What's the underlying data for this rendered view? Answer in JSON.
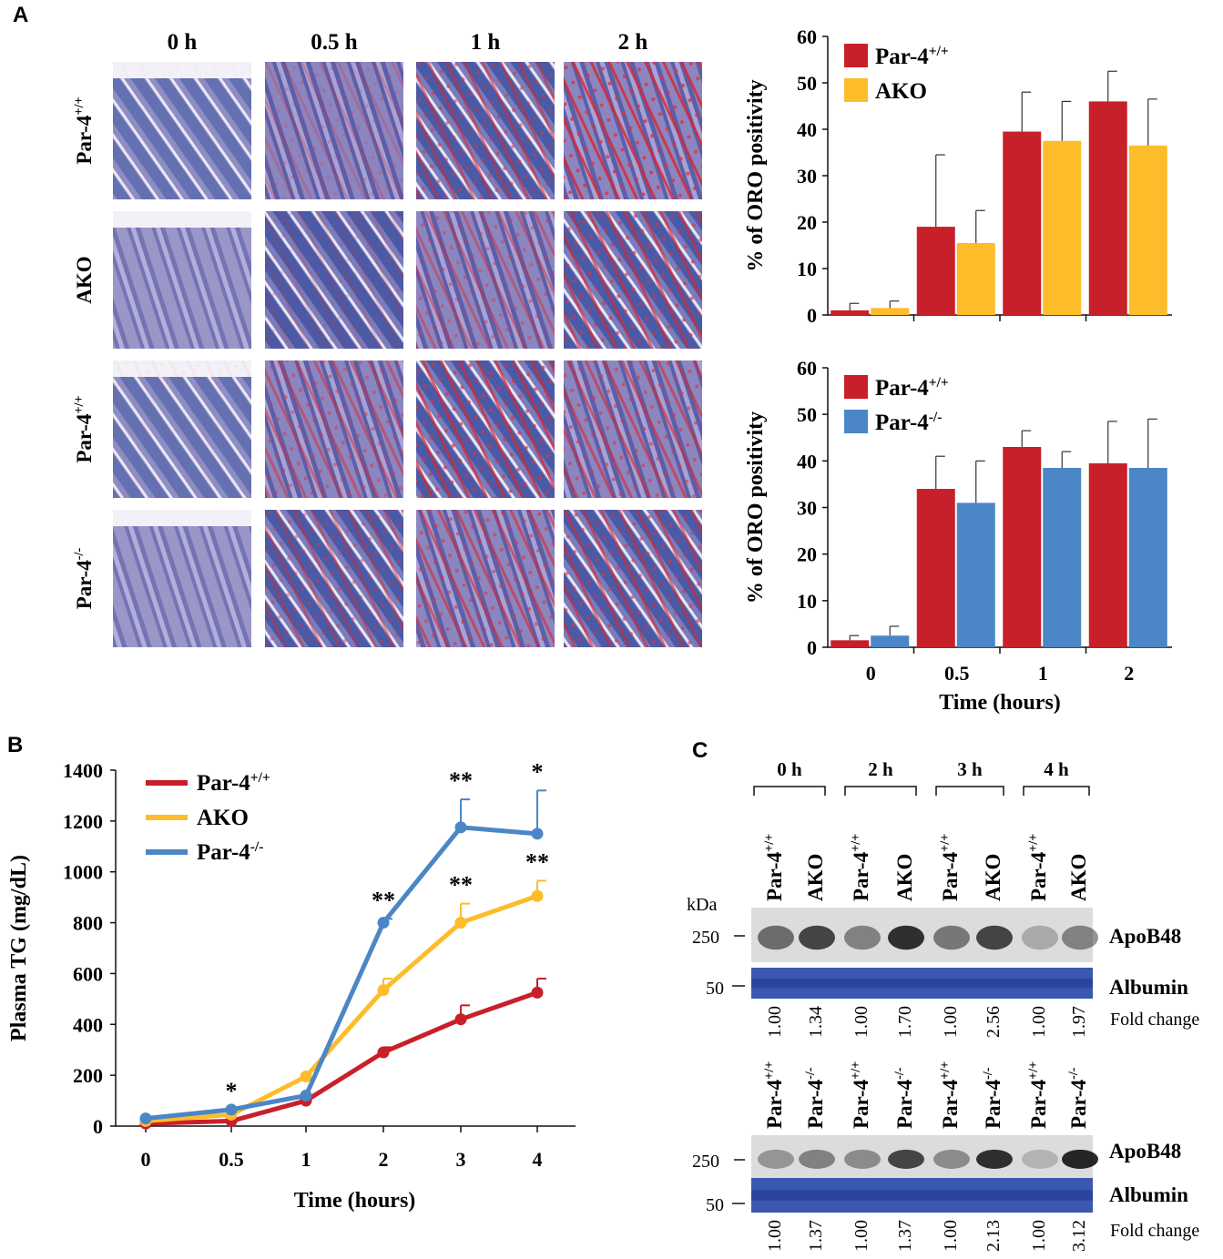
{
  "panels": {
    "a": "A",
    "b": "B",
    "c": "C"
  },
  "micrographs": {
    "columns": [
      "0 h",
      "0.5 h",
      "1 h",
      "2 h"
    ],
    "row_labels": [
      {
        "base": "Par-4",
        "sup": "+/+"
      },
      {
        "base": "AKO",
        "sup": ""
      },
      {
        "base": "Par-4",
        "sup": "+/+"
      },
      {
        "base": "Par-4",
        "sup": "-/-"
      }
    ],
    "stain_levels": [
      [
        0.02,
        0.25,
        0.55,
        0.8
      ],
      [
        0.0,
        0.2,
        0.45,
        0.65
      ],
      [
        0.05,
        0.5,
        0.7,
        0.6
      ],
      [
        0.0,
        0.45,
        0.6,
        0.6
      ]
    ]
  },
  "chart_data": [
    {
      "type": "bar",
      "title": "",
      "categories": [
        "0",
        "0.5",
        "1",
        "2"
      ],
      "series": [
        {
          "name": "Par-4",
          "sup": "+/+",
          "color": "#c8202a",
          "values": [
            1,
            19,
            39.5,
            46
          ],
          "errors": [
            1.5,
            15.5,
            8.5,
            6.5
          ]
        },
        {
          "name": "AKO",
          "sup": "",
          "color": "#fdbc2a",
          "values": [
            1.5,
            15.5,
            37.5,
            36.5
          ],
          "errors": [
            1.5,
            7,
            8.5,
            10
          ]
        }
      ],
      "ylabel": "% of ORO positivity",
      "xlabel": "",
      "ylim": [
        0,
        60
      ],
      "yticks": [
        "0",
        "10",
        "20",
        "30",
        "40",
        "50",
        "60"
      ],
      "legend": "top-left"
    },
    {
      "type": "bar",
      "title": "",
      "categories": [
        "0",
        "0.5",
        "1",
        "2"
      ],
      "series": [
        {
          "name": "Par-4",
          "sup": "+/+",
          "color": "#c8202a",
          "values": [
            1.5,
            34,
            43,
            39.5
          ],
          "errors": [
            1,
            7,
            3.5,
            9
          ]
        },
        {
          "name": "Par-4",
          "sup": "-/-",
          "color": "#4b86c6",
          "values": [
            2.5,
            31,
            38.5,
            38.5
          ],
          "errors": [
            2,
            9,
            3.5,
            10.5
          ]
        }
      ],
      "ylabel": "% of ORO positivity",
      "xlabel": "Time (hours)",
      "ylim": [
        0,
        60
      ],
      "yticks": [
        "0",
        "10",
        "20",
        "30",
        "40",
        "50",
        "60"
      ],
      "legend": "top-left"
    },
    {
      "type": "line",
      "title": "",
      "x": [
        "0",
        "0.5",
        "1",
        "2",
        "3",
        "4"
      ],
      "series": [
        {
          "name": "Par-4",
          "sup": "+/+",
          "color": "#c8202a",
          "values": [
            10,
            20,
            100,
            290,
            420,
            525
          ],
          "errors": [
            0,
            0,
            0,
            20,
            55,
            55
          ]
        },
        {
          "name": "AKO",
          "sup": "",
          "color": "#fdbc2a",
          "values": [
            20,
            45,
            195,
            535,
            800,
            905
          ],
          "errors": [
            0,
            0,
            0,
            45,
            75,
            60
          ]
        },
        {
          "name": "Par-4",
          "sup": "-/-",
          "color": "#4b86c6",
          "values": [
            30,
            65,
            120,
            800,
            1175,
            1150
          ],
          "errors": [
            0,
            0,
            0,
            15,
            110,
            170
          ]
        }
      ],
      "significance": [
        {
          "x": "0.5",
          "series": 2,
          "text": "*"
        },
        {
          "x": "2",
          "series": 2,
          "text": "**"
        },
        {
          "x": "3",
          "series": 2,
          "text": "**"
        },
        {
          "x": "3",
          "series": 1,
          "text": "**"
        },
        {
          "x": "4",
          "series": 2,
          "text": "*"
        },
        {
          "x": "4",
          "series": 1,
          "text": "**"
        }
      ],
      "ylabel": "Plasma TG  (mg/dL)",
      "xlabel": "Time (hours)",
      "ylim": [
        0,
        1400
      ],
      "yticks": [
        "0",
        "200",
        "400",
        "600",
        "800",
        "1000",
        "1200",
        "1400"
      ],
      "legend": "top-left"
    }
  ],
  "blots": {
    "kda": "kDa",
    "marker_250": "250",
    "marker_50": "50",
    "apob48": "ApoB48",
    "albumin": "Albumin",
    "fold_change": "Fold change",
    "top": {
      "groups": [
        "0 h",
        "2 h",
        "3 h",
        "4 h"
      ],
      "lanes": [
        {
          "base": "Par-4",
          "sup": "+/+"
        },
        {
          "base": "AKO",
          "sup": ""
        },
        {
          "base": "Par-4",
          "sup": "+/+"
        },
        {
          "base": "AKO",
          "sup": ""
        },
        {
          "base": "Par-4",
          "sup": "+/+"
        },
        {
          "base": "AKO",
          "sup": ""
        },
        {
          "base": "Par-4",
          "sup": "+/+"
        },
        {
          "base": "AKO",
          "sup": ""
        }
      ],
      "fold": [
        "1.00",
        "1.34",
        "1.00",
        "1.70",
        "1.00",
        "2.56",
        "1.00",
        "1.97"
      ],
      "band_intensity": [
        0.55,
        0.75,
        0.45,
        0.85,
        0.5,
        0.75,
        0.25,
        0.45
      ]
    },
    "bottom": {
      "lanes": [
        {
          "base": "Par-4",
          "sup": "+/+"
        },
        {
          "base": "Par-4",
          "sup": "-/-"
        },
        {
          "base": "Par-4",
          "sup": "+/+"
        },
        {
          "base": "Par-4",
          "sup": "-/-"
        },
        {
          "base": "Par-4",
          "sup": "+/+"
        },
        {
          "base": "Par-4",
          "sup": "-/-"
        },
        {
          "base": "Par-4",
          "sup": "+/+"
        },
        {
          "base": "Par-4",
          "sup": "-/-"
        }
      ],
      "fold": [
        "1.00",
        "1.37",
        "1.00",
        "1.37",
        "1.00",
        "2.13",
        "1.00",
        "3.12"
      ],
      "band_intensity": [
        0.35,
        0.45,
        0.4,
        0.75,
        0.4,
        0.85,
        0.2,
        0.9
      ]
    }
  }
}
